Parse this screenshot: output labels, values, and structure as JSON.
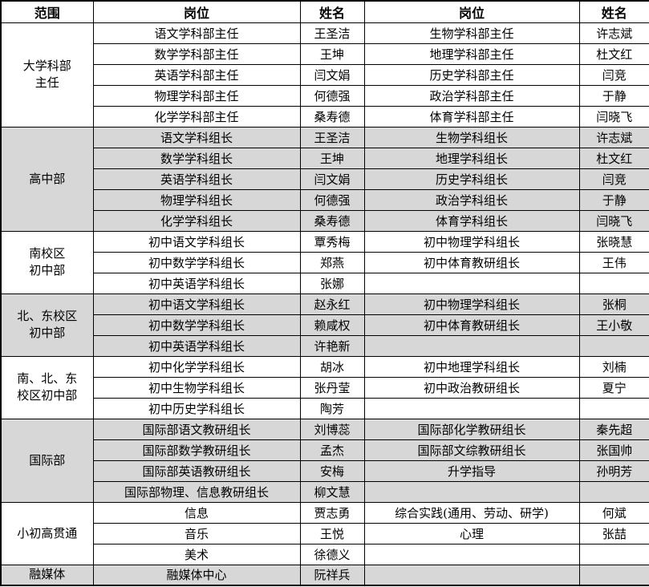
{
  "table": {
    "headers": [
      "范围",
      "岗位",
      "姓名",
      "岗位",
      "姓名"
    ],
    "colors": {
      "shaded_row": "#d7d7d7",
      "plain_row": "#ffffff",
      "border": "#000000",
      "text": "#000000"
    },
    "groups": [
      {
        "scope": "大学科部\n主任",
        "shaded": false,
        "rows": [
          [
            "语文学科部主任",
            "王圣洁",
            "生物学科部主任",
            "许志斌"
          ],
          [
            "数学学科部主任",
            "王坤",
            "地理学科部主任",
            "杜文红"
          ],
          [
            "英语学科部主任",
            "闫文娟",
            "历史学科部主任",
            "闫竞"
          ],
          [
            "物理学科部主任",
            "何德强",
            "政治学科部主任",
            "于静"
          ],
          [
            "化学学科部主任",
            "桑寿德",
            "体育学科部主任",
            "闫晓飞"
          ]
        ]
      },
      {
        "scope": "高中部",
        "shaded": true,
        "rows": [
          [
            "语文学科组长",
            "王圣洁",
            "生物学科组长",
            "许志斌"
          ],
          [
            "数学学科组长",
            "王坤",
            "地理学科组长",
            "杜文红"
          ],
          [
            "英语学科组长",
            "闫文娟",
            "历史学科组长",
            "闫竞"
          ],
          [
            "物理学科组长",
            "何德强",
            "政治学科组长",
            "于静"
          ],
          [
            "化学学科组长",
            "桑寿德",
            "体育学科组长",
            "闫晓飞"
          ]
        ]
      },
      {
        "scope": "南校区\n初中部",
        "shaded": false,
        "rows": [
          [
            "初中语文学科组长",
            "覃秀梅",
            "初中物理学科组长",
            "张晓慧"
          ],
          [
            "初中数学学科组长",
            "郑燕",
            "初中体育教研组长",
            "王伟"
          ],
          [
            "初中英语学科组长",
            "张娜",
            "",
            ""
          ]
        ]
      },
      {
        "scope": "北、东校区\n初中部",
        "shaded": true,
        "rows": [
          [
            "初中语文学科组长",
            "赵永红",
            "初中物理学科组长",
            "张桐"
          ],
          [
            "初中数学学科组长",
            "赖咸权",
            "初中体育教研组长",
            "王小敬"
          ],
          [
            "初中英语学科组长",
            "许艳新",
            "",
            ""
          ]
        ]
      },
      {
        "scope": "南、北、东\n校区初中部",
        "shaded": false,
        "rows": [
          [
            "初中化学学科组长",
            "胡冰",
            "初中地理学科组长",
            "刘楠"
          ],
          [
            "初中生物学科组长",
            "张丹莹",
            "初中政治教研组长",
            "夏宁"
          ],
          [
            "初中历史学科组长",
            "陶芳",
            "",
            ""
          ]
        ]
      },
      {
        "scope": "国际部",
        "shaded": true,
        "rows": [
          [
            "国际部语文教研组长",
            "刘博蕊",
            "国际部化学教研组长",
            "秦先超"
          ],
          [
            "国际部数学教研组长",
            "孟杰",
            "国际部文综教研组长",
            "张国帅"
          ],
          [
            "国际部英语教研组长",
            "安梅",
            "升学指导",
            "孙明芳"
          ],
          [
            "国际部物理、信息教研组长",
            "柳文慧",
            "",
            ""
          ]
        ]
      },
      {
        "scope": "小初高贯通",
        "shaded": false,
        "rows": [
          [
            "信息",
            "贾志勇",
            "综合实践(通用、劳动、研学)",
            "何斌"
          ],
          [
            "音乐",
            "王悦",
            "心理",
            "张喆"
          ],
          [
            "美术",
            "徐德义",
            "",
            ""
          ]
        ]
      },
      {
        "scope": "融媒体",
        "shaded": true,
        "rows": [
          [
            "融媒体中心",
            "阮祥兵",
            "",
            ""
          ]
        ]
      }
    ]
  }
}
